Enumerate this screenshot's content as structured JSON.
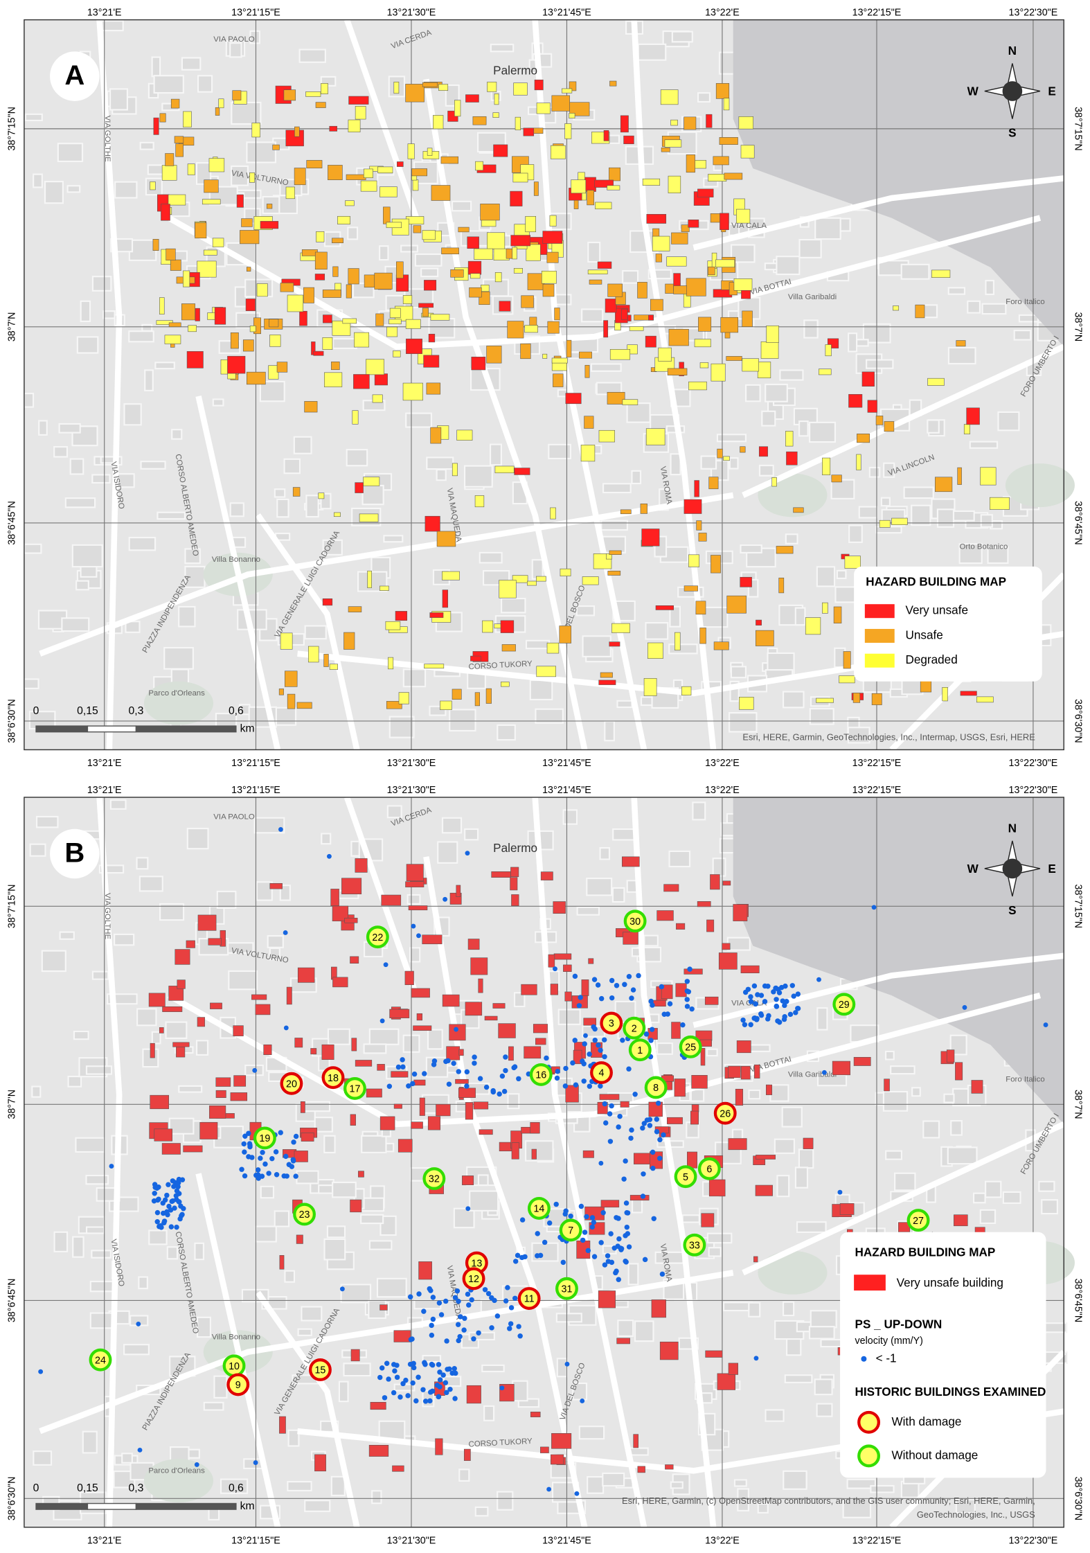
{
  "lon_labels": [
    "13°21'E",
    "13°21'15\"E",
    "13°21'30\"E",
    "13°21'45\"E",
    "13°22'E",
    "13°22'15\"E",
    "13°22'30\"E"
  ],
  "lat_labels": [
    "38°7'15\"N",
    "38°7'N",
    "38°6'45\"N",
    "38°6'30\"N"
  ],
  "panels": [
    {
      "label": "A",
      "attribution": [
        "Esri, HERE, Garmin, GeoTechnologies, Inc., Intermap, USGS, Esri, HERE"
      ]
    },
    {
      "label": "B",
      "attribution": [
        "Esri, HERE, Garmin, (c) OpenStreetMap contributors, and the GIS user community; Esri, HERE, Garmin,",
        "GeoTechnologies, Inc., USGS"
      ]
    }
  ],
  "place_labels": [
    "Palermo",
    "VIA CALA",
    "VIA ROMA",
    "VIA MAQUEDA",
    "VIA VOLTURNO",
    "CORSO TUKORY",
    "VIA LINCOLN",
    "FORO UMBERTO I",
    "Foro Italico",
    "Villa Garibaldi",
    "Villa Bonanno",
    "Orto Botanico",
    "Parco d'Orleans",
    "PIAZZA INDIPENDENZA",
    "CORSO ALBERTO AMEDEO",
    "VIA GENERALE LUIGI CADORNA",
    "VIA PAOLO",
    "VIA CERDA",
    "VIA BOTTAI",
    "VIA DEL BOSCO",
    "VIA GOLTHE",
    "VIA ISIDORO"
  ],
  "compass": {
    "n": "N",
    "s": "S",
    "e": "E",
    "w": "W"
  },
  "scale": {
    "ticks": [
      "0",
      "0,15",
      "0,3",
      "0,6"
    ],
    "unit": "km"
  },
  "legend_a": {
    "title": "HAZARD BUILDING MAP",
    "items": [
      {
        "label": "Very unsafe",
        "color": "#ff2020"
      },
      {
        "label": "Unsafe",
        "color": "#f5a623"
      },
      {
        "label": "Degraded",
        "color": "#ffff33"
      }
    ]
  },
  "legend_b": {
    "title": "HAZARD BUILDING MAP",
    "building": {
      "label": "Very unsafe building",
      "color": "#ff2020"
    },
    "ps_title": "PS _ UP-DOWN",
    "ps_sub": "velocity (mm/Y)",
    "ps_item": "< -1",
    "ps_color": "#1565e0",
    "hist_title": "HISTORIC BUILDINGS EXAMINED",
    "damage": "With damage",
    "no_damage": "Without damage"
  },
  "markers": [
    {
      "label": "30",
      "damaged": false
    },
    {
      "label": "22",
      "damaged": false
    },
    {
      "label": "29",
      "damaged": false
    },
    {
      "label": "3",
      "damaged": true
    },
    {
      "label": "2",
      "damaged": false
    },
    {
      "label": "1",
      "damaged": false
    },
    {
      "label": "25",
      "damaged": false
    },
    {
      "label": "20",
      "damaged": true
    },
    {
      "label": "18",
      "damaged": true
    },
    {
      "label": "17",
      "damaged": false
    },
    {
      "label": "16",
      "damaged": false
    },
    {
      "label": "4",
      "damaged": true
    },
    {
      "label": "8",
      "damaged": false
    },
    {
      "label": "26",
      "damaged": true
    },
    {
      "label": "19",
      "damaged": false
    },
    {
      "label": "5",
      "damaged": false
    },
    {
      "label": "6",
      "damaged": false
    },
    {
      "label": "32",
      "damaged": false
    },
    {
      "label": "23",
      "damaged": false
    },
    {
      "label": "14",
      "damaged": false
    },
    {
      "label": "27",
      "damaged": false
    },
    {
      "label": "7",
      "damaged": false
    },
    {
      "label": "33",
      "damaged": false
    },
    {
      "label": "13",
      "damaged": true
    },
    {
      "label": "12",
      "damaged": true
    },
    {
      "label": "11",
      "damaged": true
    },
    {
      "label": "31",
      "damaged": false
    },
    {
      "label": "24",
      "damaged": false
    },
    {
      "label": "10",
      "damaged": false
    },
    {
      "label": "9",
      "damaged": true
    },
    {
      "label": "15",
      "damaged": true
    }
  ]
}
